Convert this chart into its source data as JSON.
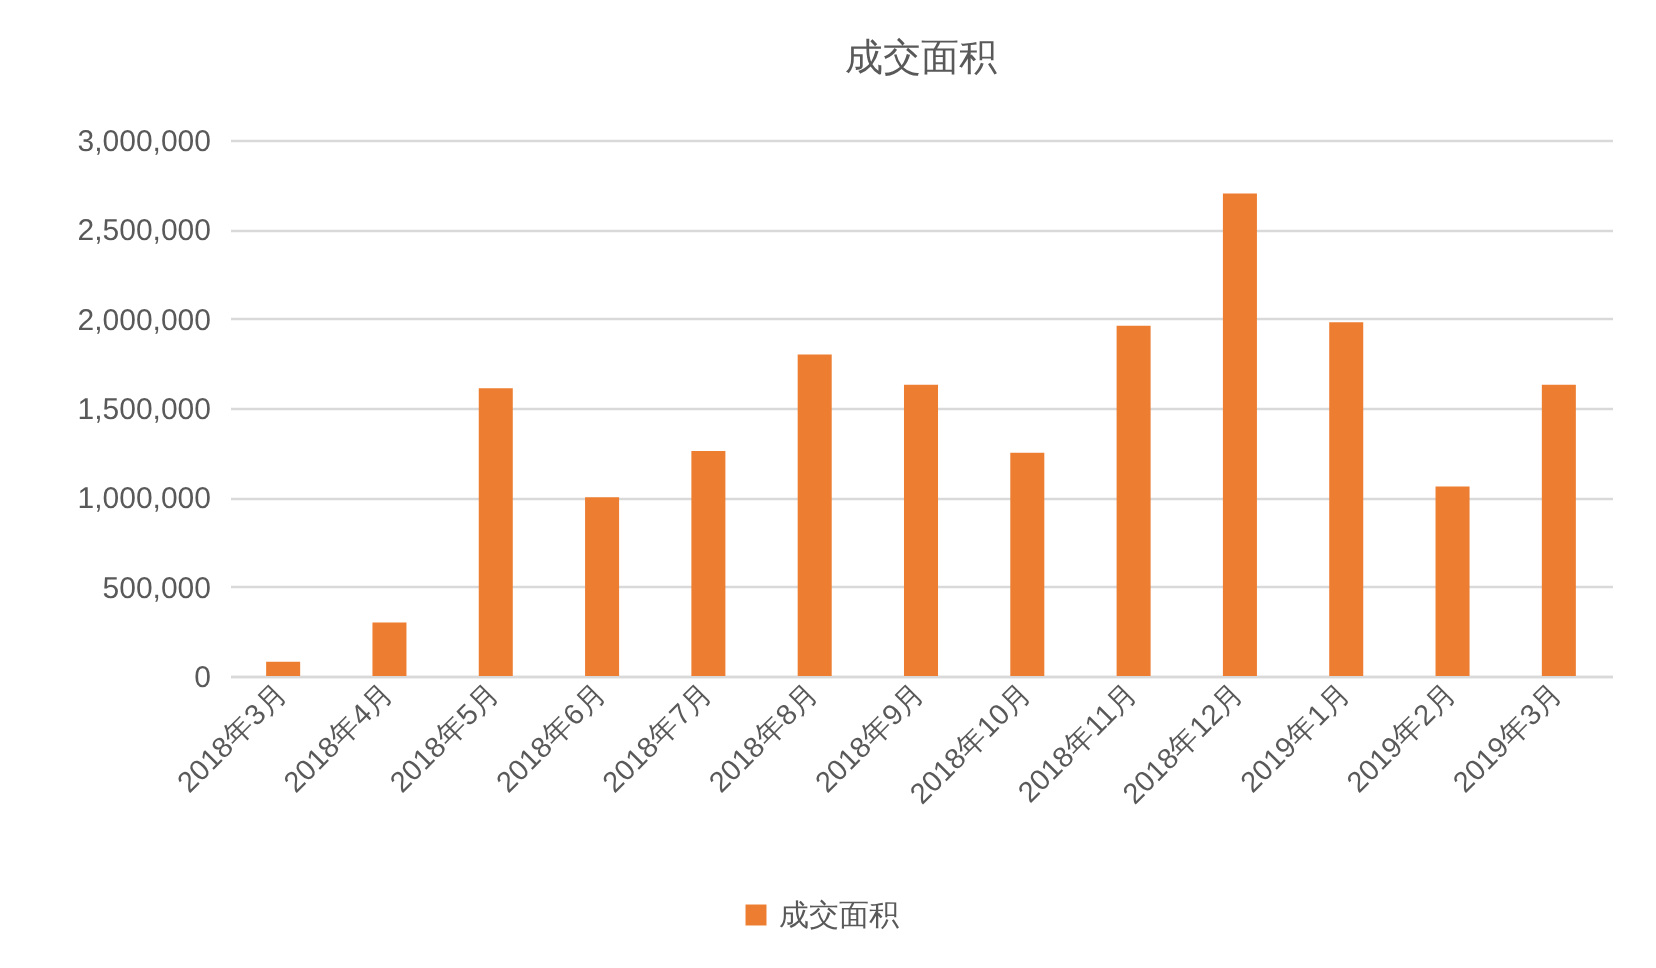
{
  "chart_data": {
    "type": "bar",
    "title": "成交面积",
    "categories": [
      "2018年3月",
      "2018年4月",
      "2018年5月",
      "2018年6月",
      "2018年7月",
      "2018年8月",
      "2018年9月",
      "2018年10月",
      "2018年11月",
      "2018年12月",
      "2019年1月",
      "2019年2月",
      "2019年3月"
    ],
    "series": [
      {
        "name": "成交面积",
        "color": "#ed7d31",
        "values": [
          80000,
          300000,
          1610000,
          1000000,
          1260000,
          1800000,
          1630000,
          1250000,
          1960000,
          2700000,
          1980000,
          1060000,
          1630000
        ]
      }
    ],
    "ylim": [
      0,
      3000000
    ],
    "yticks": [
      0,
      {
        "value": 500000,
        "label": "500,000"
      },
      {
        "value": 1000000,
        "label": "1,000,000"
      },
      {
        "value": 1500000,
        "label": "1,500,000"
      },
      {
        "value": 2000000,
        "label": "2,000,000"
      },
      {
        "value": 2500000,
        "label": "2,500,000"
      },
      {
        "value": 3000000,
        "label": "3,000,000"
      }
    ],
    "grid": "y",
    "legend": "bottom"
  }
}
